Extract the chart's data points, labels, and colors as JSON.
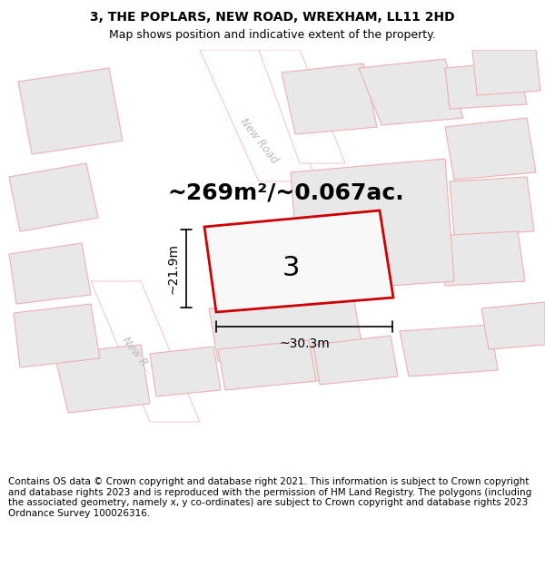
{
  "title": "3, THE POPLARS, NEW ROAD, WREXHAM, LL11 2HD",
  "subtitle": "Map shows position and indicative extent of the property.",
  "area_label": "~269m²/~0.067ac.",
  "number_label": "3",
  "dim_width": "~30.3m",
  "dim_height": "~21.9m",
  "road_label_top": "New Road",
  "road_label_left": "New R...",
  "footer": "Contains OS data © Crown copyright and database right 2021. This information is subject to Crown copyright and database rights 2023 and is reproduced with the permission of HM Land Registry. The polygons (including the associated geometry, namely x, y co-ordinates) are subject to Crown copyright and database rights 2023 Ordnance Survey 100026316.",
  "bg_color": "#ffffff",
  "map_bg": "#ffffff",
  "building_fill": "#e8e8e8",
  "road_fill": "#ffffff",
  "highlight_fill": "#f5f5f5",
  "highlight_edge": "#cc0000",
  "outline_color": "#f0b0b0",
  "road_outline": "#e0c0c0",
  "title_fontsize": 10,
  "subtitle_fontsize": 9,
  "area_fontsize": 18,
  "number_fontsize": 22,
  "dim_fontsize": 10,
  "road_fontsize": 8.5,
  "footer_fontsize": 7.5
}
